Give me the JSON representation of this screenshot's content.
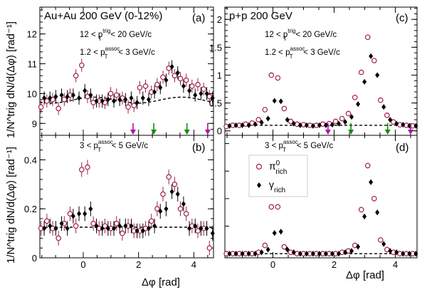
{
  "figure": {
    "ylabel_top_left": "1/N^trig dN/d(Δφ) [rad⁻¹]",
    "ylabel_bottom_left": "1/N^trig dN/d(Δφ) [rad⁻¹]",
    "xlabel_left": "Δφ [rad]",
    "xlabel_right": "Δφ [rad]",
    "colors": {
      "pi0": "#a0204a",
      "gamma": "#000000",
      "arrow_magenta": "#b0129c",
      "arrow_green": "#118a11"
    }
  },
  "chart_data": [
    {
      "panel": "a",
      "type": "scatter",
      "title": "Au+Au 200 GeV (0-12%)",
      "tag": "(a)",
      "cuts": [
        "12 < p_T^trig < 20 GeV/c",
        "1.2 < p_T^assoc < 3 GeV/c"
      ],
      "xlim": [
        -1.57,
        4.71
      ],
      "ylim": [
        8.6,
        12.9
      ],
      "xticks": [
        0,
        2,
        4
      ],
      "yticks": [
        9,
        10,
        11,
        12
      ],
      "x": [
        -1.47,
        -1.26,
        -1.05,
        -0.84,
        -0.63,
        -0.42,
        -0.21,
        0.0,
        0.21,
        0.42,
        0.63,
        0.84,
        1.05,
        1.26,
        1.47,
        1.68,
        1.89,
        2.1,
        2.31,
        2.52,
        2.73,
        2.94,
        3.15,
        3.36,
        3.57,
        3.78,
        3.99,
        4.2,
        4.41,
        4.62
      ],
      "series": [
        {
          "name": "π⁰_rich",
          "marker": "open-circle",
          "values": [
            9.55,
            9.75,
            9.8,
            9.5,
            9.8,
            9.95,
            10.6,
            10.95,
            9.9,
            9.7,
            9.75,
            9.7,
            10.0,
            9.95,
            9.85,
            9.55,
            9.6,
            10.2,
            10.25,
            10.05,
            10.3,
            10.55,
            10.85,
            10.6,
            10.5,
            10.45,
            10.25,
            10.3,
            10.15,
            9.9
          ]
        },
        {
          "name": "γ_rich",
          "marker": "filled-diamond",
          "values": [
            9.85,
            9.85,
            9.9,
            9.95,
            9.9,
            9.95,
            9.85,
            10.1,
            9.95,
            9.75,
            9.75,
            9.8,
            9.75,
            9.8,
            9.8,
            9.85,
            9.7,
            9.85,
            9.8,
            10.05,
            10.2,
            10.45,
            10.9,
            10.7,
            10.25,
            10.1,
            9.95,
            10.0,
            10.0,
            9.85
          ]
        }
      ],
      "background": "dashed",
      "arrows": [
        {
          "x": 1.8,
          "color": "magenta"
        },
        {
          "x": 2.55,
          "color": "green"
        },
        {
          "x": 3.75,
          "color": "green"
        },
        {
          "x": 4.5,
          "color": "magenta"
        }
      ]
    },
    {
      "panel": "b",
      "type": "scatter",
      "tag": "(b)",
      "cuts": [
        "3 < p_T^assoc < 5 GeV/c"
      ],
      "xlim": [
        -1.57,
        4.71
      ],
      "ylim": [
        0.0,
        0.5
      ],
      "xticks": [
        0,
        2,
        4
      ],
      "yticks": [
        0,
        0.2,
        0.4
      ],
      "x": [
        -1.47,
        -1.26,
        -1.05,
        -0.84,
        -0.63,
        -0.42,
        -0.21,
        0.0,
        0.21,
        0.42,
        0.63,
        0.84,
        1.05,
        1.26,
        1.47,
        1.68,
        1.89,
        2.1,
        2.31,
        2.52,
        2.73,
        2.94,
        3.15,
        3.36,
        3.57,
        3.78,
        3.99,
        4.2,
        4.41,
        4.62
      ],
      "series": [
        {
          "name": "π⁰_rich",
          "marker": "open-circle",
          "values": [
            0.12,
            0.15,
            0.12,
            0.08,
            0.14,
            0.18,
            0.13,
            0.36,
            0.37,
            0.14,
            0.12,
            0.13,
            0.12,
            0.14,
            0.1,
            0.13,
            0.11,
            0.11,
            0.12,
            0.15,
            0.2,
            0.26,
            0.33,
            0.3,
            0.2,
            0.18,
            0.13,
            0.11,
            0.12,
            0.04
          ]
        },
        {
          "name": "γ_rich",
          "marker": "filled-diamond",
          "values": [
            0.12,
            0.13,
            0.12,
            0.14,
            0.12,
            0.17,
            0.18,
            0.18,
            0.2,
            0.13,
            0.12,
            0.12,
            0.12,
            0.13,
            0.13,
            0.13,
            0.11,
            0.11,
            0.12,
            0.13,
            0.19,
            0.2,
            0.27,
            0.26,
            0.22,
            0.12,
            0.13,
            0.12,
            0.12,
            0.1
          ]
        }
      ],
      "background": "dashed"
    },
    {
      "panel": "c",
      "type": "scatter",
      "title": "p+p 200 GeV",
      "tag": "(c)",
      "cuts": [
        "12 < p_T^trig < 20 GeV/c",
        "1.2 < p_T^assoc < 3 GeV/c"
      ],
      "xlim": [
        -1.57,
        4.71
      ],
      "ylim": [
        -0.08,
        2.22
      ],
      "xticks": [
        0,
        2,
        4
      ],
      "yticks": [
        0,
        0.5,
        1,
        1.5,
        2
      ],
      "x": [
        -1.47,
        -1.26,
        -1.05,
        -0.84,
        -0.63,
        -0.42,
        -0.21,
        0.0,
        0.21,
        0.42,
        0.63,
        0.84,
        1.05,
        1.26,
        1.47,
        1.68,
        1.89,
        2.1,
        2.31,
        2.52,
        2.73,
        2.94,
        3.15,
        3.36,
        3.57,
        3.78,
        3.99,
        4.2,
        4.41,
        4.62
      ],
      "series": [
        {
          "name": "π⁰_rich",
          "marker": "open-circle",
          "values": [
            0.08,
            0.1,
            0.1,
            0.12,
            0.14,
            0.2,
            0.38,
            1.0,
            0.95,
            0.4,
            0.17,
            0.12,
            0.11,
            0.1,
            0.1,
            0.12,
            0.13,
            0.17,
            0.22,
            0.31,
            0.6,
            1.05,
            1.68,
            1.26,
            0.55,
            0.28,
            0.16,
            0.11,
            0.1,
            0.09
          ]
        },
        {
          "name": "γ_rich",
          "marker": "filled-diamond",
          "values": [
            0.09,
            0.1,
            0.1,
            0.1,
            0.12,
            0.15,
            0.22,
            0.54,
            0.53,
            0.2,
            0.13,
            0.1,
            0.1,
            0.09,
            0.1,
            0.1,
            0.11,
            0.13,
            0.16,
            0.25,
            0.48,
            0.88,
            1.34,
            1.0,
            0.43,
            0.2,
            0.13,
            0.11,
            0.09,
            0.09
          ]
        }
      ],
      "background": "dashed",
      "arrows": [
        {
          "x": 1.8,
          "color": "magenta"
        },
        {
          "x": 2.55,
          "color": "green"
        },
        {
          "x": 3.75,
          "color": "green"
        },
        {
          "x": 4.5,
          "color": "magenta"
        }
      ]
    },
    {
      "panel": "d",
      "type": "scatter",
      "tag": "(d)",
      "cuts": [
        "3 < p_T^assoc < 5 GeV/c"
      ],
      "xlim": [
        -1.57,
        4.71
      ],
      "ylim": [
        -0.03,
        0.86
      ],
      "xticks": [
        0,
        2,
        4
      ],
      "yticks": [],
      "x": [
        -1.47,
        -1.26,
        -1.05,
        -0.84,
        -0.63,
        -0.42,
        -0.21,
        0.0,
        0.21,
        0.42,
        0.63,
        0.84,
        1.05,
        1.26,
        1.47,
        1.68,
        1.89,
        2.1,
        2.31,
        2.52,
        2.73,
        2.94,
        3.15,
        3.36,
        3.57,
        3.78,
        3.99,
        4.2,
        4.41,
        4.62
      ],
      "series": [
        {
          "name": "π⁰_rich",
          "marker": "open-circle",
          "values": [
            0.0,
            0.0,
            0.0,
            0.0,
            0.0,
            0.01,
            0.06,
            0.34,
            0.34,
            0.05,
            0.01,
            0.0,
            0.0,
            0.0,
            0.0,
            0.0,
            0.0,
            0.0,
            0.01,
            0.02,
            0.06,
            0.32,
            0.64,
            0.4,
            0.1,
            0.03,
            0.01,
            0.0,
            0.0,
            0.0
          ]
        },
        {
          "name": "γ_rich",
          "marker": "filled-diamond",
          "values": [
            0.0,
            0.0,
            0.0,
            0.0,
            0.0,
            0.01,
            0.03,
            0.15,
            0.16,
            0.03,
            0.01,
            0.0,
            0.0,
            0.0,
            0.0,
            0.0,
            0.0,
            0.0,
            0.01,
            0.02,
            0.05,
            0.27,
            0.52,
            0.3,
            0.07,
            0.02,
            0.01,
            0.0,
            0.0,
            0.0
          ]
        }
      ],
      "background": "dashed",
      "legend": {
        "position": "top-left",
        "entries": [
          "π⁰_rich",
          "γ_rich"
        ]
      }
    }
  ]
}
